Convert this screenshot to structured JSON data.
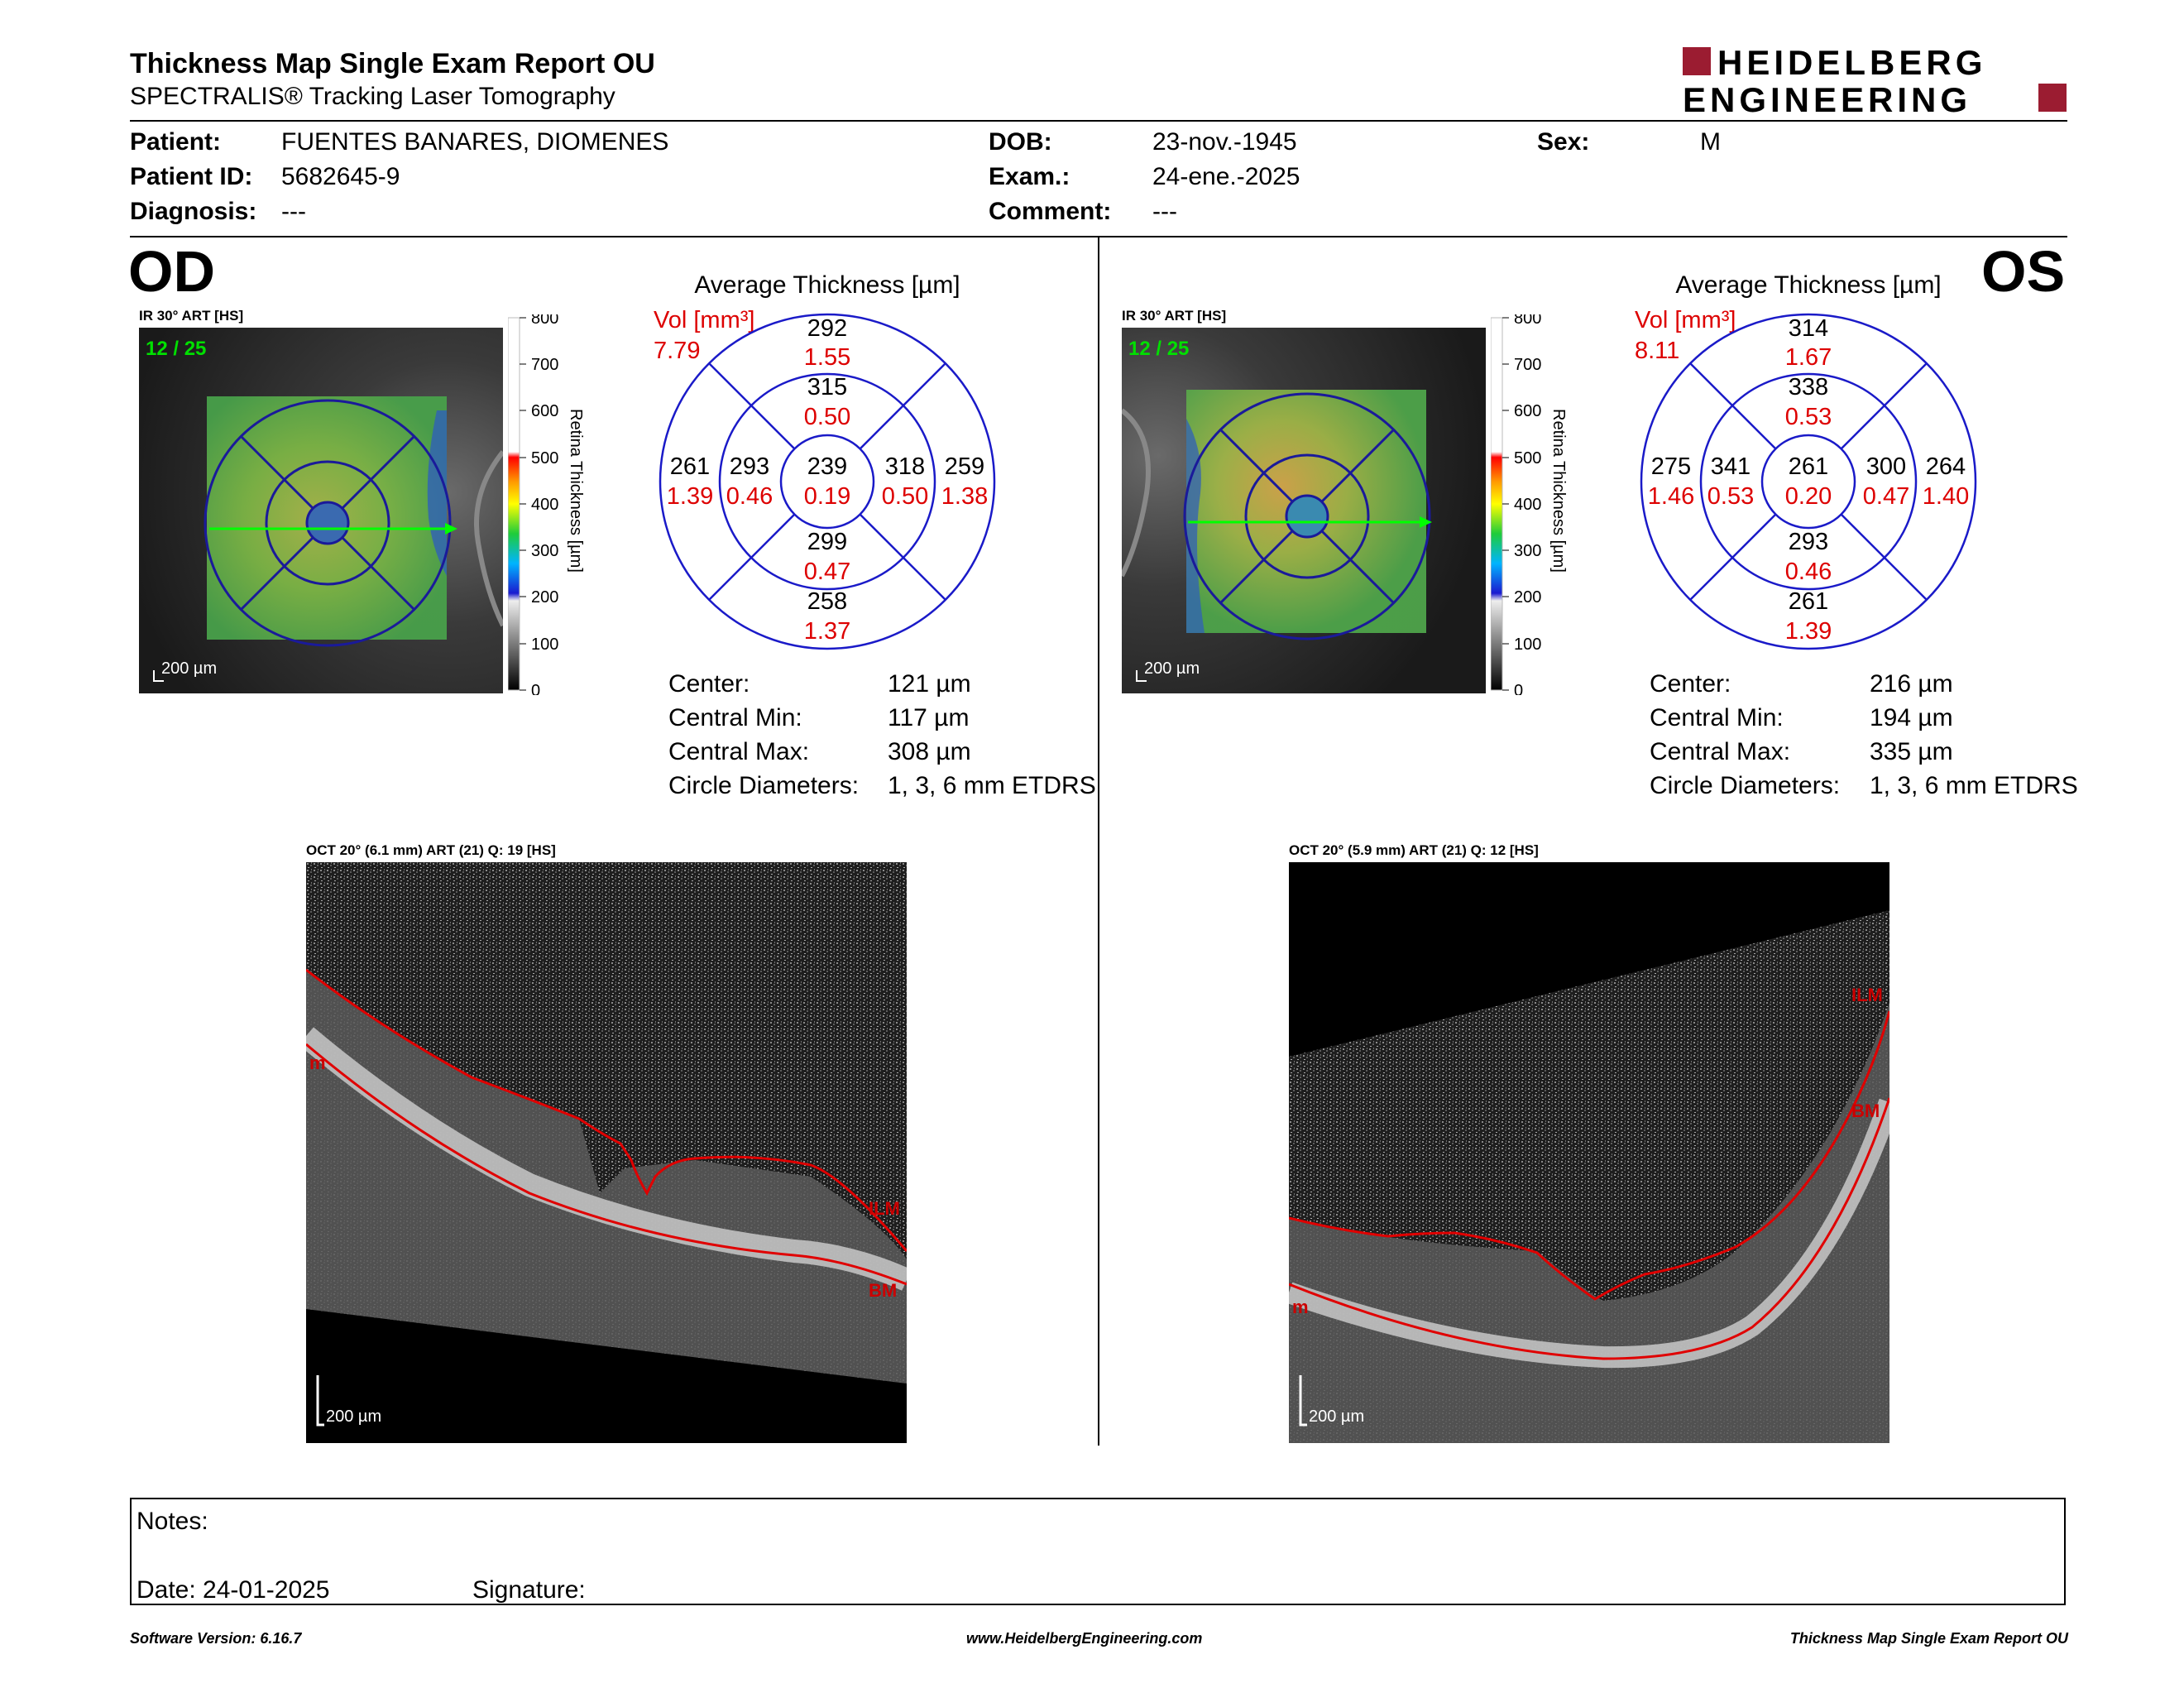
{
  "report": {
    "title": "Thickness Map Single Exam Report OU",
    "subtitle": "SPECTRALIS® Tracking Laser Tomography",
    "logo_line1": "HEIDELBERG",
    "logo_line2": "ENGINEERING",
    "brand_color": "#9b1c31"
  },
  "patient": {
    "patient_label": "Patient:",
    "patient_value": "FUENTES BANARES, DIOMENES",
    "id_label": "Patient ID:",
    "id_value": "5682645-9",
    "diagnosis_label": "Diagnosis:",
    "diagnosis_value": "---",
    "dob_label": "DOB:",
    "dob_value": "23-nov.-1945",
    "exam_label": "Exam.:",
    "exam_value": "24-ene.-2025",
    "comment_label": "Comment:",
    "comment_value": "---",
    "sex_label": "Sex:",
    "sex_value": "M"
  },
  "od": {
    "eye_label": "OD",
    "ir_label": "IR 30° ART [HS]",
    "frame": "12 / 25",
    "scale": "200 µm",
    "colorbar_ticks": [
      "800",
      "700",
      "600",
      "500",
      "400",
      "300",
      "200",
      "100",
      "0"
    ],
    "colorbar_title": "Retina Thickness [µm]",
    "avg_title": "Average Thickness [µm]",
    "vol_label": "Vol [mm³]",
    "vol_total": "7.79",
    "sectors": {
      "outer_top": [
        "292",
        "1.55"
      ],
      "inner_top": [
        "315",
        "0.50"
      ],
      "outer_left": [
        "261",
        "1.39"
      ],
      "inner_left": [
        "293",
        "0.46"
      ],
      "center": [
        "239",
        "0.19"
      ],
      "inner_right": [
        "318",
        "0.50"
      ],
      "outer_right": [
        "259",
        "1.38"
      ],
      "inner_bottom": [
        "299",
        "0.47"
      ],
      "outer_bottom": [
        "258",
        "1.37"
      ]
    },
    "stats": {
      "center_label": "Center:",
      "center_value": "121 µm",
      "min_label": "Central Min:",
      "min_value": "117 µm",
      "max_label": "Central Max:",
      "max_value": "308 µm",
      "diam_label": "Circle Diameters:",
      "diam_value": "1, 3, 6 mm ETDRS"
    },
    "oct_label": "OCT 20° (6.1 mm) ART (21) Q: 19 [HS]",
    "oct_tag_ilm": "ILM",
    "oct_tag_bm": "BM",
    "oct_tag_m": "m",
    "oct_scale": "200 µm"
  },
  "os": {
    "eye_label": "OS",
    "ir_label": "IR 30° ART [HS]",
    "frame": "12 / 25",
    "scale": "200 µm",
    "colorbar_ticks": [
      "800",
      "700",
      "600",
      "500",
      "400",
      "300",
      "200",
      "100",
      "0"
    ],
    "colorbar_title": "Retina Thickness [µm]",
    "avg_title": "Average Thickness [µm]",
    "vol_label": "Vol [mm³]",
    "vol_total": "8.11",
    "sectors": {
      "outer_top": [
        "314",
        "1.67"
      ],
      "inner_top": [
        "338",
        "0.53"
      ],
      "outer_left": [
        "275",
        "1.46"
      ],
      "inner_left": [
        "341",
        "0.53"
      ],
      "center": [
        "261",
        "0.20"
      ],
      "inner_right": [
        "300",
        "0.47"
      ],
      "outer_right": [
        "264",
        "1.40"
      ],
      "inner_bottom": [
        "293",
        "0.46"
      ],
      "outer_bottom": [
        "261",
        "1.39"
      ]
    },
    "stats": {
      "center_label": "Center:",
      "center_value": "216 µm",
      "min_label": "Central Min:",
      "min_value": "194 µm",
      "max_label": "Central Max:",
      "max_value": "335 µm",
      "diam_label": "Circle Diameters:",
      "diam_value": "1, 3, 6 mm ETDRS"
    },
    "oct_label": "OCT 20° (5.9 mm) ART (21) Q: 12 [HS]",
    "oct_tag_ilm": "ILM",
    "oct_tag_bm": "BM",
    "oct_tag_m": "m",
    "oct_scale": "200 µm"
  },
  "notes": {
    "notes_label": "Notes:",
    "date_label": "Date: 24-01-2025",
    "signature_label": "Signature:"
  },
  "footer": {
    "version": "Software Version: 6.16.7",
    "url": "www.HeidelbergEngineering.com",
    "report_name": "Thickness Map Single Exam Report OU"
  }
}
